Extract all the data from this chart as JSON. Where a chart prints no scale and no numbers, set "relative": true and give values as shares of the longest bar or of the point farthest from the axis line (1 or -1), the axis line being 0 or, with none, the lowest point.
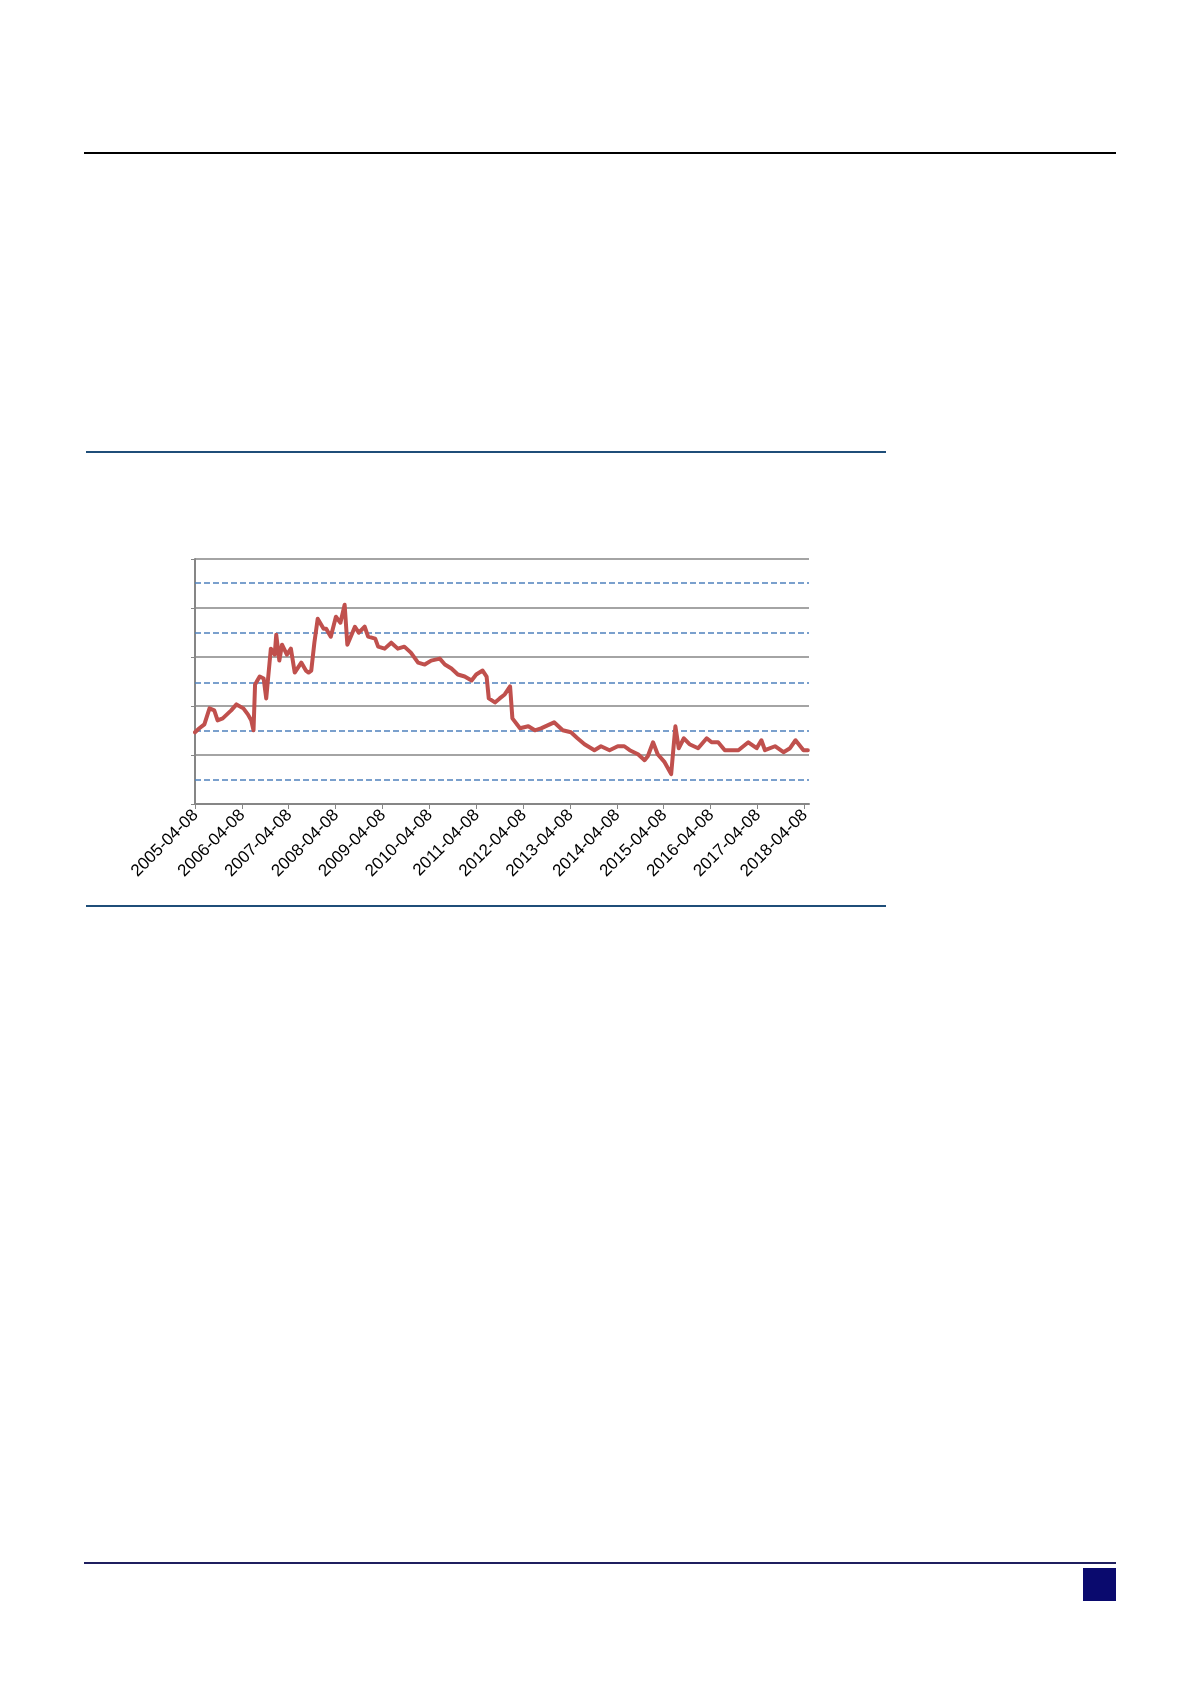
{
  "chart_data": {
    "type": "line",
    "relative": true,
    "grid": "y",
    "marker": "none",
    "line_style": "solid",
    "xlim": [
      "2005-04-08",
      "2018-05-14"
    ],
    "xticks": [
      "2005-04-08",
      "2006-04-08",
      "2007-04-08",
      "2008-04-08",
      "2009-04-08",
      "2010-04-08",
      "2011-04-08",
      "2012-04-08",
      "2013-04-08",
      "2014-04-08",
      "2015-04-08",
      "2016-04-08",
      "2017-04-08",
      "2018-04-08"
    ],
    "ref_lines": [
      {
        "axis": "y",
        "value": 1.11,
        "label": null,
        "color": "#4f81bd",
        "line_style": "dashed"
      },
      {
        "axis": "y",
        "value": 0.86,
        "label": null,
        "color": "#4f81bd",
        "line_style": "dashed"
      },
      {
        "axis": "y",
        "value": 0.61,
        "label": null,
        "color": "#4f81bd",
        "line_style": "dashed"
      },
      {
        "axis": "y",
        "value": 0.37,
        "label": null,
        "color": "#4f81bd",
        "line_style": "dashed"
      },
      {
        "axis": "y",
        "value": 0.12,
        "label": null,
        "color": "#4f81bd",
        "line_style": "dashed"
      }
    ],
    "series": [
      {
        "color": "#c0504d",
        "x": [
          "2005-04-08",
          "2005-05-12",
          "2005-06-20",
          "2005-07-30",
          "2005-09-05",
          "2005-10-01",
          "2005-11-10",
          "2006-01-15",
          "2006-02-25",
          "2006-04-20",
          "2006-05-25",
          "2006-06-20",
          "2006-07-08",
          "2006-07-20",
          "2006-08-25",
          "2006-09-25",
          "2006-10-15",
          "2006-11-20",
          "2006-12-20",
          "2007-01-01",
          "2007-01-25",
          "2007-02-15",
          "2007-03-25",
          "2007-04-25",
          "2007-05-25",
          "2007-07-15",
          "2007-08-20",
          "2007-09-10",
          "2007-10-01",
          "2007-10-25",
          "2007-11-20",
          "2008-01-05",
          "2008-01-25",
          "2008-03-01",
          "2008-04-10",
          "2008-05-15",
          "2008-06-17",
          "2008-07-08",
          "2008-08-10",
          "2008-09-05",
          "2008-10-05",
          "2008-11-20",
          "2008-12-17",
          "2009-02-10",
          "2009-03-05",
          "2009-04-25",
          "2009-06-15",
          "2009-08-05",
          "2009-09-25",
          "2009-11-15",
          "2010-01-10",
          "2010-03-03",
          "2010-04-22",
          "2010-06-28",
          "2010-08-07",
          "2010-09-27",
          "2010-11-16",
          "2011-01-08",
          "2011-03-03",
          "2011-04-08",
          "2011-05-28",
          "2011-06-28",
          "2011-07-15",
          "2011-09-01",
          "2011-10-08",
          "2011-11-16",
          "2011-12-28",
          "2012-01-15",
          "2012-03-14",
          "2012-05-18",
          "2012-07-08",
          "2012-08-25",
          "2012-12-05",
          "2013-02-10",
          "2013-04-15",
          "2013-06-05",
          "2013-07-30",
          "2013-10-15",
          "2013-12-05",
          "2014-02-10",
          "2014-04-15",
          "2014-06-05",
          "2014-07-17",
          "2014-09-20",
          "2014-11-10",
          "2014-12-05",
          "2015-01-15",
          "2015-02-20",
          "2015-04-15",
          "2015-06-05",
          "2015-07-08",
          "2015-08-03",
          "2015-09-12",
          "2015-10-26",
          "2016-01-01",
          "2016-03-08",
          "2016-04-15",
          "2016-06-05",
          "2016-07-27",
          "2016-11-10",
          "2017-01-26",
          "2017-04-01",
          "2017-05-08",
          "2017-06-05",
          "2017-08-22",
          "2017-10-27",
          "2017-12-17",
          "2018-01-29",
          "2018-04-01",
          "2018-05-05"
        ],
        "values": [
          0.36,
          0.38,
          0.4,
          0.48,
          0.47,
          0.42,
          0.43,
          0.47,
          0.5,
          0.48,
          0.45,
          0.42,
          0.37,
          0.6,
          0.64,
          0.63,
          0.53,
          0.78,
          0.75,
          0.85,
          0.72,
          0.8,
          0.75,
          0.78,
          0.66,
          0.71,
          0.67,
          0.66,
          0.67,
          0.81,
          0.93,
          0.88,
          0.88,
          0.84,
          0.94,
          0.91,
          1,
          0.8,
          0.85,
          0.89,
          0.86,
          0.89,
          0.84,
          0.83,
          0.79,
          0.78,
          0.81,
          0.78,
          0.79,
          0.76,
          0.71,
          0.7,
          0.72,
          0.73,
          0.7,
          0.68,
          0.65,
          0.64,
          0.62,
          0.65,
          0.67,
          0.64,
          0.53,
          0.51,
          0.53,
          0.55,
          0.59,
          0.43,
          0.38,
          0.39,
          0.37,
          0.38,
          0.41,
          0.37,
          0.36,
          0.33,
          0.3,
          0.27,
          0.29,
          0.27,
          0.29,
          0.29,
          0.27,
          0.25,
          0.22,
          0.24,
          0.31,
          0.25,
          0.21,
          0.15,
          0.39,
          0.28,
          0.33,
          0.3,
          0.28,
          0.33,
          0.31,
          0.31,
          0.27,
          0.27,
          0.31,
          0.28,
          0.32,
          0.27,
          0.29,
          0.26,
          0.28,
          0.32,
          0.27,
          0.27
        ]
      }
    ]
  }
}
